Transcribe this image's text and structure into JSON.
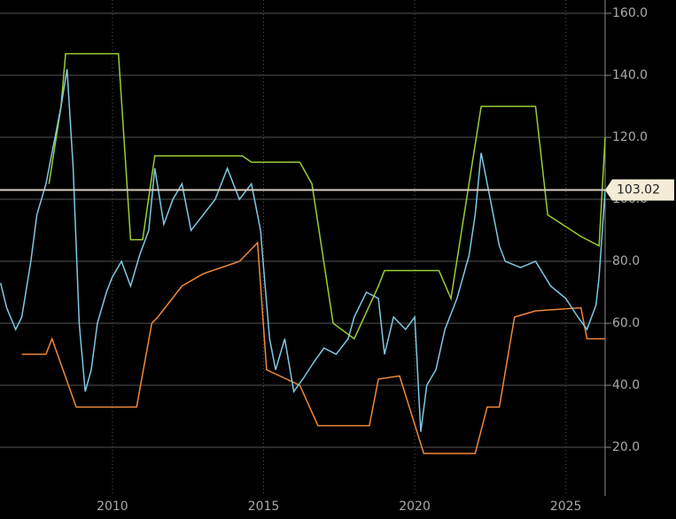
{
  "chart_data": {
    "type": "line",
    "xlim": [
      2006.28,
      2026.3
    ],
    "xticks": [
      2010,
      2015,
      2020,
      2025
    ],
    "ylim": [
      4.3,
      164.3
    ],
    "yticks": [
      {
        "value": 20,
        "label": "20.0"
      },
      {
        "value": 40,
        "label": "40.0"
      },
      {
        "value": 60,
        "label": "60.0"
      },
      {
        "value": 80,
        "label": "80.0"
      },
      {
        "value": 100,
        "label": "100.0"
      },
      {
        "value": 120,
        "label": "120.0"
      },
      {
        "value": 140,
        "label": "140.0"
      },
      {
        "value": 160,
        "label": "160.0"
      }
    ],
    "grid": true,
    "last_price": 103.02,
    "series": [
      {
        "color": "#f0883a",
        "x": [
          2007.0,
          2007.8,
          2008.0,
          2008.8,
          2010.8,
          2011.3,
          2011.5,
          2012.3,
          2013.0,
          2014.2,
          2014.8,
          2015.1,
          2016.2,
          2016.8,
          2018.5,
          2018.8,
          2019.5,
          2020.3,
          2022.0,
          2022.4,
          2022.8,
          2023.3,
          2024.0,
          2025.5,
          2025.7,
          2026.3
        ],
        "values": [
          50,
          50,
          55,
          33,
          33,
          60,
          62,
          72,
          76,
          80,
          86,
          45,
          40,
          27,
          27,
          42,
          43,
          18,
          18,
          33,
          33,
          62,
          64,
          65,
          55,
          55
        ]
      },
      {
        "color": "#9acd32",
        "x": [
          2007.9,
          2008.3,
          2008.45,
          2010.2,
          2010.6,
          2011.0,
          2011.4,
          2014.3,
          2014.6,
          2016.2,
          2016.6,
          2017.3,
          2018.0,
          2018.8,
          2019.0,
          2020.8,
          2021.2,
          2022.2,
          2024.0,
          2024.4,
          2025.5,
          2026.1,
          2026.3
        ],
        "values": [
          105,
          130,
          147,
          147,
          87,
          87,
          114,
          114,
          112,
          112,
          105,
          60,
          55,
          72,
          77,
          77,
          68,
          130,
          130,
          95,
          88,
          85,
          120
        ]
      },
      {
        "color": "#7ec8e3",
        "x": [
          2006.3,
          2006.5,
          2006.8,
          2007.0,
          2007.3,
          2007.5,
          2007.8,
          2008.0,
          2008.3,
          2008.5,
          2008.7,
          2008.9,
          2009.1,
          2009.3,
          2009.5,
          2009.8,
          2010.0,
          2010.3,
          2010.6,
          2010.9,
          2011.2,
          2011.4,
          2011.7,
          2012.0,
          2012.3,
          2012.6,
          2013.0,
          2013.4,
          2013.8,
          2014.2,
          2014.6,
          2014.9,
          2015.0,
          2015.2,
          2015.4,
          2015.7,
          2016.0,
          2016.3,
          2016.7,
          2017.0,
          2017.4,
          2017.8,
          2018.0,
          2018.4,
          2018.8,
          2019.0,
          2019.3,
          2019.7,
          2020.0,
          2020.2,
          2020.4,
          2020.7,
          2021.0,
          2021.4,
          2021.8,
          2022.0,
          2022.2,
          2022.5,
          2022.8,
          2023.0,
          2023.5,
          2024.0,
          2024.5,
          2025.0,
          2025.4,
          2025.7,
          2026.0,
          2026.1,
          2026.3
        ],
        "values": [
          73,
          65,
          58,
          62,
          80,
          95,
          105,
          115,
          130,
          142,
          110,
          60,
          38,
          45,
          60,
          70,
          75,
          80,
          72,
          82,
          90,
          110,
          92,
          100,
          105,
          90,
          95,
          100,
          110,
          100,
          105,
          90,
          78,
          55,
          45,
          55,
          38,
          42,
          48,
          52,
          50,
          55,
          62,
          70,
          68,
          50,
          62,
          58,
          62,
          25,
          40,
          45,
          58,
          68,
          82,
          95,
          115,
          100,
          85,
          80,
          78,
          80,
          72,
          68,
          62,
          58,
          66,
          75,
          103.02
        ]
      }
    ]
  }
}
